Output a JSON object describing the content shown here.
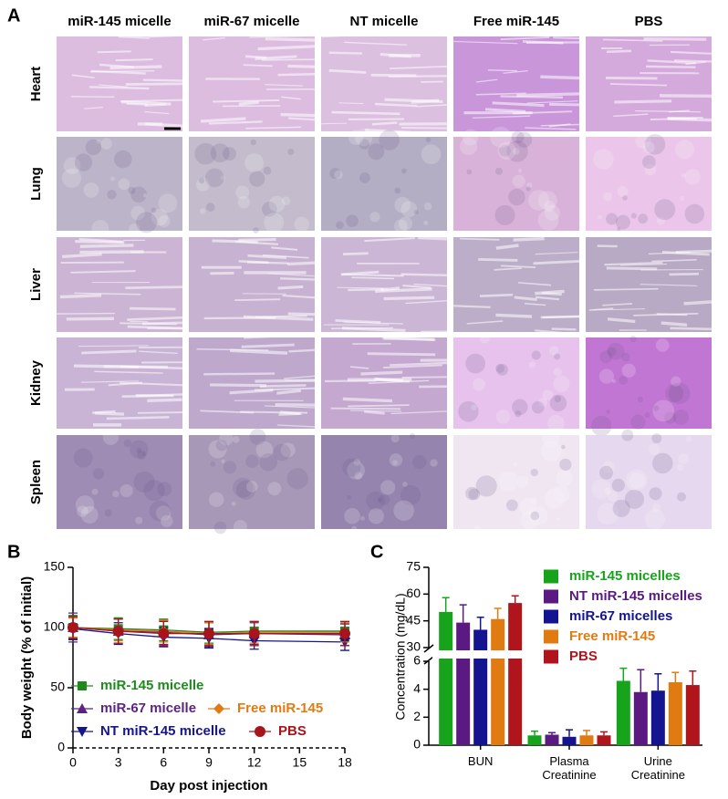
{
  "panel_a": {
    "label": "A",
    "columns": [
      "miR-145  micelle",
      "miR-67  micelle",
      "NT micelle",
      "Free miR-145",
      "PBS"
    ],
    "rows": [
      "Heart",
      "Lung",
      "Liver",
      "Kidney",
      "Spleen"
    ]
  },
  "chart_data": [
    {
      "type": "line",
      "label": "B",
      "xlabel": "Day post injection",
      "ylabel": "Body weight (% of initial)",
      "x": [
        0,
        3,
        6,
        9,
        12,
        18
      ],
      "xlim": [
        0,
        18
      ],
      "xticks": [
        0,
        3,
        6,
        9,
        12,
        15,
        18
      ],
      "ylim": [
        0,
        150
      ],
      "yticks": [
        0,
        50,
        100,
        150
      ],
      "legend": "lower left",
      "series": [
        {
          "name": "miR-145 micelle",
          "color": "#1e8a1e",
          "marker": "square",
          "values": [
            100,
            99,
            98,
            96,
            97,
            97
          ],
          "errors": [
            10,
            9,
            9,
            9,
            8,
            8
          ]
        },
        {
          "name": "miR-67 micelle",
          "color": "#5c2480",
          "marker": "triangle-up",
          "values": [
            100,
            97,
            96,
            94,
            95,
            94
          ],
          "errors": [
            12,
            10,
            10,
            10,
            9,
            9
          ]
        },
        {
          "name": "NT miR-145 micelle",
          "color": "#16168c",
          "marker": "triangle-down",
          "values": [
            99,
            95,
            92,
            91,
            89,
            88
          ],
          "errors": [
            9,
            9,
            8,
            8,
            7,
            7
          ]
        },
        {
          "name": "Free miR-145",
          "color": "#e07b12",
          "marker": "diamond",
          "values": [
            100,
            98,
            97,
            95,
            96,
            96
          ],
          "errors": [
            8,
            9,
            9,
            9,
            9,
            8
          ]
        },
        {
          "name": "PBS",
          "color": "#a8141c",
          "marker": "circle",
          "values": [
            100,
            97,
            95,
            95,
            95,
            95
          ],
          "errors": [
            9,
            10,
            10,
            10,
            10,
            10
          ]
        }
      ]
    },
    {
      "type": "bar",
      "label": "C",
      "ylabel": "Concentration (mg/dL)",
      "categories": [
        "BUN",
        "Plasma Creatinine",
        "Urine Creatinine"
      ],
      "ylim_lower": [
        0,
        6
      ],
      "yticks_lower": [
        0,
        2,
        4,
        6
      ],
      "ylim_upper": [
        30,
        75
      ],
      "yticks_upper": [
        30,
        45,
        60,
        75
      ],
      "legend": "upper right",
      "series": [
        {
          "name": "miR-145 micelles",
          "color": "#17a41c",
          "values": [
            50,
            0.7,
            4.6
          ],
          "errors": [
            8,
            0.3,
            0.9
          ]
        },
        {
          "name": "NT miR-145 micelles",
          "color": "#5a1a82",
          "values": [
            44,
            0.75,
            3.8
          ],
          "errors": [
            10,
            0.15,
            1.6
          ]
        },
        {
          "name": "miR-67 micelles",
          "color": "#141490",
          "values": [
            40,
            0.6,
            3.9
          ],
          "errors": [
            7,
            0.5,
            1.2
          ]
        },
        {
          "name": "Free miR-145",
          "color": "#e07b12",
          "values": [
            46,
            0.7,
            4.5
          ],
          "errors": [
            6,
            0.35,
            0.7
          ]
        },
        {
          "name": "PBS",
          "color": "#b0141c",
          "values": [
            55,
            0.7,
            4.3
          ],
          "errors": [
            4,
            0.25,
            1.0
          ]
        }
      ]
    }
  ]
}
